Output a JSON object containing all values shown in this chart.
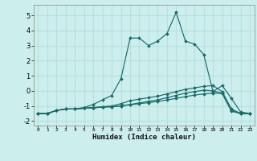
{
  "xlabel": "Humidex (Indice chaleur)",
  "bg_color": "#cceeed",
  "grid_color": "#b8e0de",
  "line_color": "#1a6b6b",
  "xlim": [
    -0.5,
    23.5
  ],
  "ylim": [
    -2.3,
    5.7
  ],
  "xticks": [
    0,
    1,
    2,
    3,
    4,
    5,
    6,
    7,
    8,
    9,
    10,
    11,
    12,
    13,
    14,
    15,
    16,
    17,
    18,
    19,
    20,
    21,
    22,
    23
  ],
  "yticks": [
    -2,
    -1,
    0,
    1,
    2,
    3,
    4,
    5
  ],
  "line1_x": [
    0,
    1,
    2,
    3,
    4,
    5,
    6,
    7,
    8,
    9,
    10,
    11,
    12,
    13,
    14,
    15,
    16,
    17,
    18,
    19,
    20,
    21,
    22,
    23
  ],
  "line1_y": [
    -1.5,
    -1.5,
    -1.3,
    -1.2,
    -1.2,
    -1.1,
    -0.9,
    -0.6,
    -0.3,
    0.8,
    3.5,
    3.5,
    3.0,
    3.3,
    3.8,
    5.2,
    3.3,
    3.1,
    2.4,
    -0.05,
    0.35,
    -0.5,
    -1.4,
    -1.5
  ],
  "line2_x": [
    0,
    1,
    2,
    3,
    4,
    5,
    6,
    7,
    8,
    9,
    10,
    11,
    12,
    13,
    14,
    15,
    16,
    17,
    18,
    19,
    20,
    21,
    22,
    23
  ],
  "line2_y": [
    -1.5,
    -1.5,
    -1.3,
    -1.2,
    -1.2,
    -1.15,
    -1.1,
    -1.05,
    -1.0,
    -0.85,
    -0.65,
    -0.55,
    -0.45,
    -0.35,
    -0.2,
    -0.05,
    0.1,
    0.2,
    0.3,
    0.35,
    -0.05,
    -1.2,
    -1.5,
    -1.5
  ],
  "line3_x": [
    0,
    1,
    2,
    3,
    4,
    5,
    6,
    7,
    8,
    9,
    10,
    11,
    12,
    13,
    14,
    15,
    16,
    17,
    18,
    19,
    20,
    21,
    22,
    23
  ],
  "line3_y": [
    -1.5,
    -1.5,
    -1.3,
    -1.2,
    -1.2,
    -1.15,
    -1.12,
    -1.08,
    -1.05,
    -1.0,
    -0.9,
    -0.8,
    -0.7,
    -0.6,
    -0.45,
    -0.3,
    -0.15,
    -0.05,
    0.05,
    0.0,
    -0.15,
    -1.3,
    -1.5,
    -1.5
  ],
  "line4_x": [
    0,
    1,
    2,
    3,
    4,
    5,
    6,
    7,
    8,
    9,
    10,
    11,
    12,
    13,
    14,
    15,
    16,
    17,
    18,
    19,
    20,
    21,
    22,
    23
  ],
  "line4_y": [
    -1.5,
    -1.5,
    -1.3,
    -1.2,
    -1.2,
    -1.15,
    -1.12,
    -1.08,
    -1.05,
    -1.0,
    -0.92,
    -0.85,
    -0.78,
    -0.7,
    -0.6,
    -0.5,
    -0.38,
    -0.28,
    -0.2,
    -0.15,
    -0.18,
    -1.35,
    -1.5,
    -1.5
  ]
}
